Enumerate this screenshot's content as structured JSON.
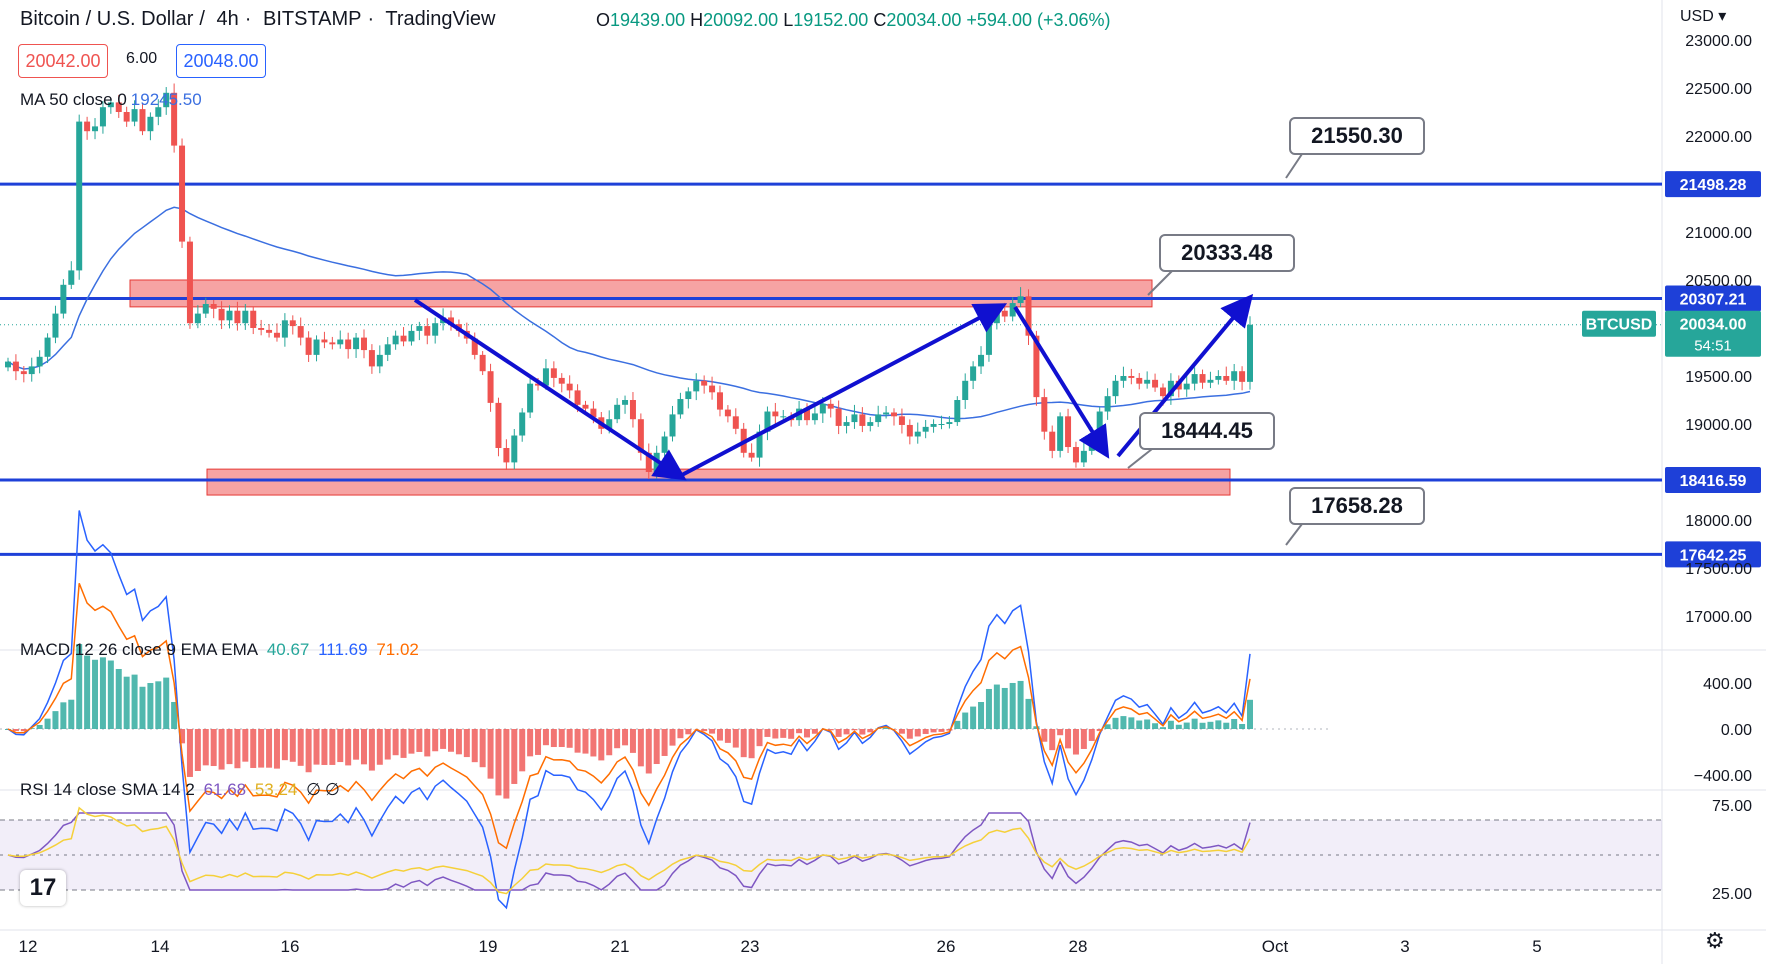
{
  "header": {
    "symbol": "Bitcoin / U.S. Dollar",
    "interval": "4h",
    "exchange": "BITSTAMP",
    "source": "TradingView",
    "open_label": "O",
    "open": "19439.00",
    "high_label": "H",
    "high": "20092.00",
    "low_label": "L",
    "low": "19152.00",
    "close_label": "C",
    "close": "20034.00",
    "change": "+594.00 (+3.06%)",
    "sell": "20042.00",
    "spread": "6.00",
    "buy": "20048.00",
    "currency": "USD"
  },
  "ma": {
    "label": "MA 50 close 0",
    "value": "19245.50"
  },
  "macd": {
    "label": "MACD 12 26 close 9 EMA EMA",
    "hist": "40.67",
    "macd": "111.69",
    "signal": "71.02"
  },
  "rsi": {
    "label": "RSI 14 close SMA 14 2",
    "rsi": "61.68",
    "sma": "53.24",
    "a": "∅",
    "b": "∅"
  },
  "symbol_tag": {
    "name": "BTCUSD",
    "price": "20034.00",
    "countdown": "54:51"
  },
  "colors": {
    "up": "#26a69a",
    "down": "#ef5350",
    "level": "#1e40d8",
    "ma": "#3b6fe0",
    "zone": "#f27c7c",
    "macd": "#2962ff",
    "signal": "#ff6d00",
    "rsi": "#7e57c2",
    "rsi_sma": "#f5d03a"
  },
  "chart_data": {
    "type": "candlestick",
    "title": "Bitcoin / U.S. Dollar, 4h",
    "price_axis": {
      "ticks": [
        23000,
        22500,
        22000,
        21000,
        20500,
        19500,
        19000,
        18000,
        17500,
        17000
      ],
      "tick_labels": [
        "23000.00",
        "22500.00",
        "22000.00",
        "21000.00",
        "20500.00",
        "19500.00",
        "19000.00",
        "18000.00",
        "17500.00",
        "17000.00"
      ],
      "ylim": [
        16800,
        23000
      ]
    },
    "time_axis": {
      "ticks": [
        "12",
        "14",
        "16",
        "19",
        "21",
        "23",
        "26",
        "28",
        "Oct",
        "3",
        "5"
      ]
    },
    "closes": [
      19650,
      19550,
      19520,
      19600,
      19700,
      19900,
      20150,
      20450,
      20600,
      22150,
      22050,
      22100,
      22300,
      22350,
      22250,
      22150,
      22280,
      22050,
      22200,
      22300,
      22450,
      21900,
      20900,
      20050,
      20150,
      20250,
      20200,
      20080,
      20180,
      20050,
      20180,
      20000,
      19980,
      19950,
      19900,
      20080,
      20020,
      19900,
      19720,
      19880,
      19850,
      19830,
      19880,
      19780,
      19900,
      19770,
      19600,
      19720,
      19830,
      19920,
      19860,
      19970,
      20020,
      19920,
      20050,
      20110,
      20040,
      19970,
      19890,
      19720,
      19550,
      19220,
      18750,
      18600,
      18880,
      19120,
      19420,
      19400,
      19580,
      19480,
      19420,
      19350,
      19200,
      19160,
      19070,
      18950,
      19050,
      19200,
      19250,
      19050,
      18700,
      18500,
      18700,
      18870,
      19100,
      19260,
      19340,
      19450,
      19400,
      19330,
      19150,
      19080,
      18950,
      18700,
      18650,
      18920,
      19130,
      19080,
      19080,
      19040,
      19160,
      19040,
      19110,
      19210,
      19160,
      18980,
      19020,
      19100,
      18980,
      19020,
      19100,
      19120,
      19080,
      18990,
      18870,
      18920,
      18970,
      19000,
      19000,
      19020,
      19250,
      19450,
      19600,
      19720,
      20050,
      20180,
      20120,
      20260,
      20330,
      19920,
      19280,
      18920,
      18720,
      19080,
      18760,
      18600,
      18720,
      18900,
      19130,
      19290,
      19450,
      19500,
      19480,
      19420,
      19460,
      19380,
      19290,
      19450,
      19360,
      19420,
      19520,
      19430,
      19460,
      19500,
      19450,
      19550,
      19439,
      20034
    ],
    "ma50_value": 19245.5,
    "horizontal_levels": [
      {
        "price": 21498.28,
        "label": "21498.28",
        "callout": "21550.30"
      },
      {
        "price": 20307.21,
        "label": "20307.21",
        "callout": "20333.48"
      },
      {
        "price": 18416.59,
        "label": "18416.59",
        "callout": "18444.45"
      },
      {
        "price": 17642.25,
        "label": "17642.25",
        "callout": "17658.28"
      }
    ],
    "zones": [
      {
        "from": 20220,
        "to": 20500
      },
      {
        "from": 18260,
        "to": 18530
      }
    ],
    "macd_axis": {
      "tick_labels": [
        "400.00",
        "0.00",
        "−400.00"
      ]
    },
    "rsi_axis": {
      "tick_labels": [
        "75.00",
        "25.00"
      ]
    }
  }
}
